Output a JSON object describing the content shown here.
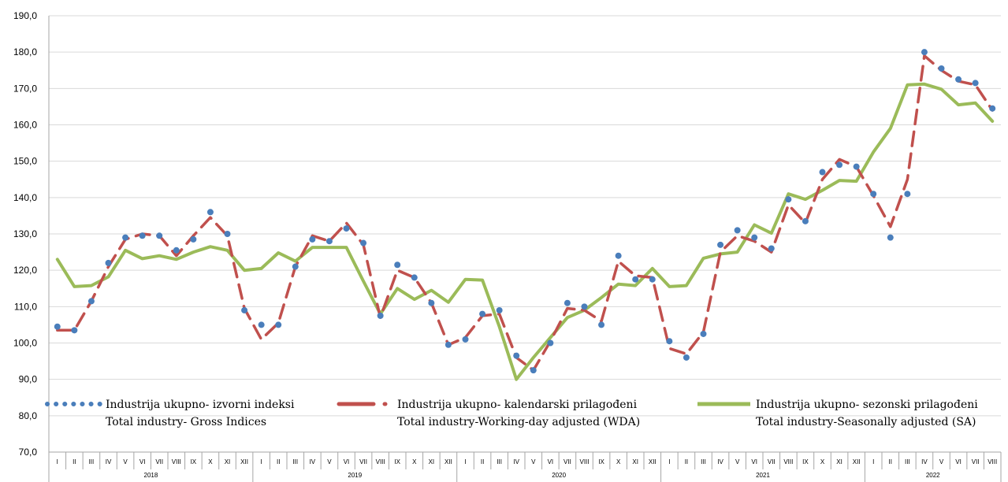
{
  "chart_data": {
    "type": "line",
    "title": "",
    "xlabel": "",
    "ylabel": "",
    "ylim": [
      70,
      190
    ],
    "ytick_step": 10,
    "grid": true,
    "legend_position": "lower-inside",
    "years": [
      "2018",
      "2019",
      "2020",
      "2021",
      "2022"
    ],
    "months": [
      "I",
      "II",
      "III",
      "IV",
      "V",
      "VI",
      "VII",
      "VIII",
      "IX",
      "X",
      "XI",
      "XII"
    ],
    "categories": [
      "I",
      "II",
      "III",
      "IV",
      "V",
      "VI",
      "VII",
      "VIII",
      "IX",
      "X",
      "XI",
      "XII",
      "I",
      "II",
      "III",
      "IV",
      "V",
      "VI",
      "VII",
      "VIII",
      "IX",
      "X",
      "XI",
      "XII",
      "I",
      "II",
      "III",
      "IV",
      "V",
      "VI",
      "VII",
      "VIII",
      "IX",
      "X",
      "XI",
      "XII",
      "I",
      "II",
      "III",
      "IV",
      "V",
      "VI",
      "VII",
      "VIII",
      "IX",
      "X",
      "XI",
      "XII",
      "I",
      "II",
      "III",
      "IV",
      "V",
      "VI",
      "VII",
      "VIII"
    ],
    "series": [
      {
        "name": "Industrija ukupno- izvorni indeksi",
        "name_en": "Total industry- Gross Indices",
        "color": "#4a7ebb",
        "style": "dots",
        "values": [
          104.5,
          103.5,
          111.5,
          122,
          129,
          129.5,
          129.5,
          125.5,
          128.5,
          136,
          130,
          109,
          105,
          105,
          121,
          128.5,
          128,
          131.5,
          127.5,
          107.5,
          121.5,
          118,
          111,
          99.5,
          101,
          108,
          109,
          96.5,
          92.5,
          100,
          111,
          110,
          105,
          124,
          117.5,
          117.5,
          100.5,
          96,
          102.5,
          127,
          131,
          129,
          126,
          139.5,
          133.5,
          147,
          149,
          148.5,
          141,
          129,
          141,
          180,
          175.5,
          172.5,
          171.5,
          164.5
        ]
      },
      {
        "name": "Industrija ukupno- kalendarski prilagođeni",
        "name_en": "Total industry-Working-day adjusted (WDA)",
        "color": "#c0504d",
        "style": "dashed",
        "values": [
          103.5,
          103.5,
          111.5,
          121,
          128.5,
          130,
          129.5,
          124,
          129.5,
          134.5,
          129.5,
          109.5,
          101,
          105.5,
          121,
          129.5,
          128,
          133,
          127,
          107,
          120,
          118,
          111,
          99.5,
          101.5,
          107.5,
          108,
          96,
          92.5,
          100.5,
          109.5,
          109,
          106,
          122.5,
          118.5,
          118,
          98.5,
          97,
          103,
          125,
          129.5,
          128,
          125,
          138,
          133,
          145,
          150.5,
          148.5,
          140.5,
          132,
          145,
          179,
          175,
          172,
          171,
          164
        ]
      },
      {
        "name": "Industrija ukupno- sezonski prilagođeni",
        "name_en": "Total industry-Seasonally adjusted (SA)",
        "color": "#9bbb59",
        "style": "solid",
        "values": [
          123,
          115.5,
          115.8,
          118.2,
          125.5,
          123.2,
          124,
          123,
          125,
          126.5,
          125.5,
          120,
          120.5,
          124.8,
          122.5,
          126.3,
          126.3,
          126.3,
          117,
          108,
          115,
          112,
          114.5,
          111.2,
          117.5,
          117.3,
          104.5,
          90,
          96,
          101.5,
          107,
          109,
          112.5,
          116.2,
          115.8,
          120.5,
          115.5,
          115.8,
          123.3,
          124.5,
          125,
          132.5,
          130.2,
          141,
          139.5,
          142,
          144.7,
          144.5,
          152.5,
          159,
          171,
          171.2,
          169.8,
          165.5,
          166,
          161
        ]
      }
    ]
  }
}
